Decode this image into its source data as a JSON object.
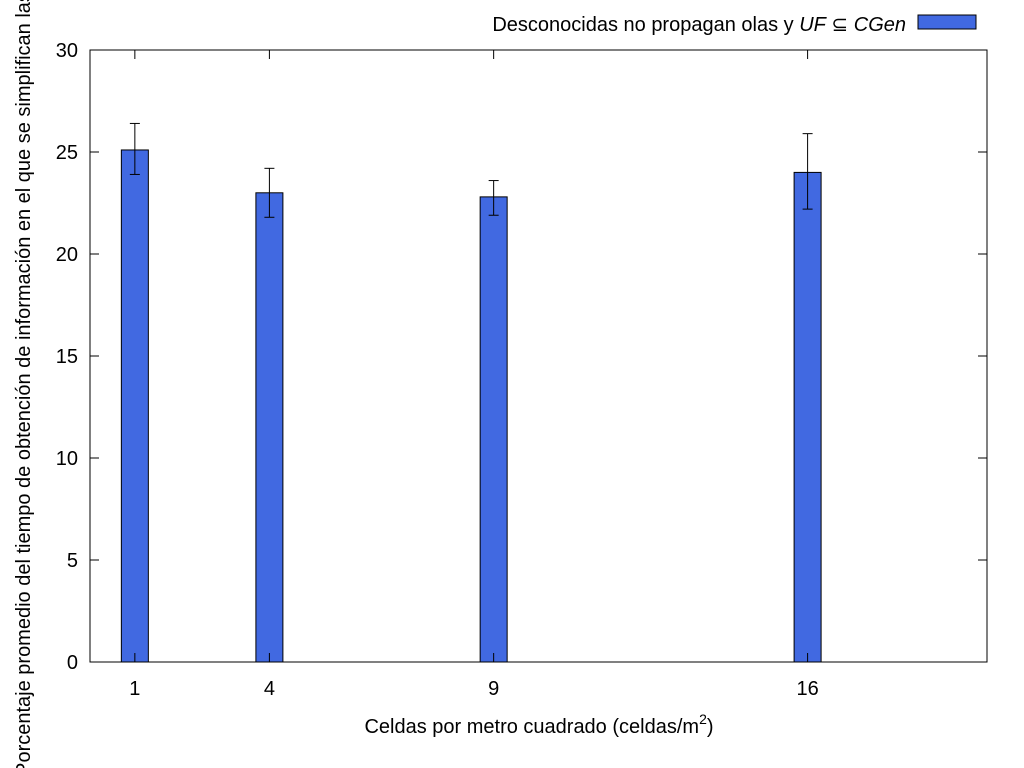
{
  "chart_data": {
    "type": "bar",
    "title": "",
    "legend": {
      "placement": "top-right",
      "text_prefix": "Desconocidas no propagan olas y ",
      "text_uf": "UF",
      "text_subset": " ⊆ ",
      "text_cgen": "CGen"
    },
    "xlabel_main": "Celdas por metro cuadrado (celdas/m",
    "xlabel_sup": "2",
    "xlabel_close": ")",
    "ylabel": "Porcentaje promedio del tiempo de obtención de información en el que se simplifican las",
    "xlim": [
      0,
      20
    ],
    "ylim": [
      0,
      30
    ],
    "x_ticks": [
      1,
      4,
      9,
      16
    ],
    "y_ticks": [
      0,
      5,
      10,
      15,
      20,
      25,
      30
    ],
    "bar_color": "#4169e1",
    "bars": [
      {
        "x": 1,
        "value": 25.1,
        "err_low": 23.9,
        "err_high": 26.4
      },
      {
        "x": 4,
        "value": 23.0,
        "err_low": 21.8,
        "err_high": 24.2
      },
      {
        "x": 9,
        "value": 22.8,
        "err_low": 21.9,
        "err_high": 23.6
      },
      {
        "x": 16,
        "value": 24.0,
        "err_low": 22.2,
        "err_high": 25.9
      }
    ],
    "grid": false
  }
}
